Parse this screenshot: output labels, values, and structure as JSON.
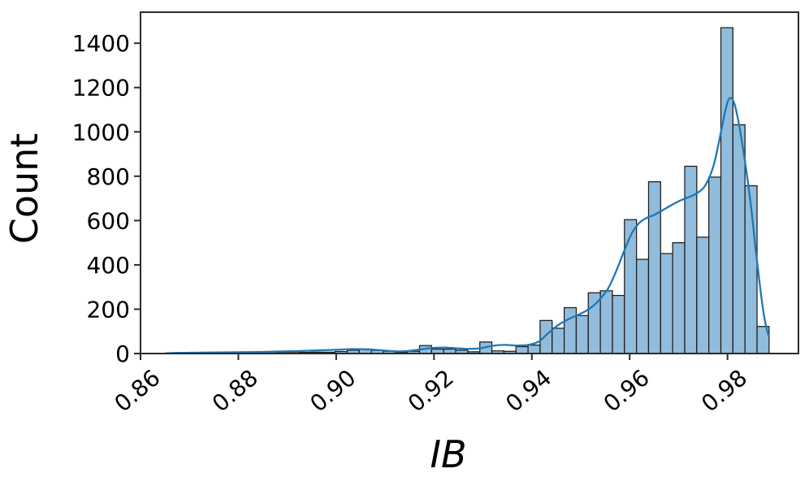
{
  "chart_data": {
    "type": "histogram",
    "title": "",
    "xlabel": "IB",
    "ylabel": "Count",
    "legend": "none",
    "grid": false,
    "xlim": [
      0.86,
      0.9945
    ],
    "ylim": [
      0,
      1540
    ],
    "x_ticks": [
      0.86,
      0.88,
      0.9,
      0.92,
      0.94,
      0.96,
      0.98
    ],
    "x_tick_labels": [
      "0.86",
      "0.88",
      "0.90",
      "0.92",
      "0.94",
      "0.96",
      "0.98"
    ],
    "y_ticks": [
      0,
      200,
      400,
      600,
      800,
      1000,
      1200,
      1400
    ],
    "y_tick_labels": [
      "0",
      "200",
      "400",
      "600",
      "800",
      "1000",
      "1200",
      "1400"
    ],
    "bin_start": 0.8653,
    "bin_width": 0.002464,
    "counts": [
      3,
      3,
      2,
      2,
      2,
      2,
      3,
      3,
      2,
      3,
      4,
      5,
      6,
      6,
      9,
      15,
      20,
      14,
      10,
      5,
      10,
      36,
      20,
      20,
      15,
      8,
      52,
      12,
      10,
      31,
      38,
      149,
      114,
      207,
      171,
      274,
      283,
      262,
      604,
      425,
      775,
      451,
      500,
      845,
      525,
      796,
      1470,
      1032,
      757,
      122
    ],
    "kde_points": [
      [
        0.8655,
        1
      ],
      [
        0.868,
        3
      ],
      [
        0.872,
        4
      ],
      [
        0.876,
        5
      ],
      [
        0.88,
        6
      ],
      [
        0.884,
        7
      ],
      [
        0.888,
        9
      ],
      [
        0.892,
        11
      ],
      [
        0.896,
        14
      ],
      [
        0.9,
        17
      ],
      [
        0.9035,
        20
      ],
      [
        0.906,
        19
      ],
      [
        0.909,
        15
      ],
      [
        0.912,
        10
      ],
      [
        0.9145,
        11
      ],
      [
        0.917,
        18
      ],
      [
        0.9195,
        25
      ],
      [
        0.922,
        27
      ],
      [
        0.9245,
        24
      ],
      [
        0.927,
        21
      ],
      [
        0.9295,
        24
      ],
      [
        0.932,
        35
      ],
      [
        0.9345,
        39
      ],
      [
        0.937,
        36
      ],
      [
        0.9395,
        40
      ],
      [
        0.9415,
        55
      ],
      [
        0.9435,
        95
      ],
      [
        0.9455,
        130
      ],
      [
        0.9475,
        155
      ],
      [
        0.9495,
        175
      ],
      [
        0.9515,
        198
      ],
      [
        0.9535,
        235
      ],
      [
        0.9555,
        290
      ],
      [
        0.9572,
        370
      ],
      [
        0.959,
        470
      ],
      [
        0.9605,
        545
      ],
      [
        0.962,
        590
      ],
      [
        0.9635,
        612
      ],
      [
        0.965,
        625
      ],
      [
        0.967,
        650
      ],
      [
        0.969,
        675
      ],
      [
        0.9705,
        692
      ],
      [
        0.972,
        705
      ],
      [
        0.9735,
        720
      ],
      [
        0.975,
        745
      ],
      [
        0.9762,
        790
      ],
      [
        0.9773,
        860
      ],
      [
        0.9783,
        960
      ],
      [
        0.9793,
        1070
      ],
      [
        0.9801,
        1140
      ],
      [
        0.9808,
        1152
      ],
      [
        0.9815,
        1120
      ],
      [
        0.9823,
        1040
      ],
      [
        0.9831,
        935
      ],
      [
        0.984,
        800
      ],
      [
        0.9849,
        645
      ],
      [
        0.9857,
        480
      ],
      [
        0.9865,
        330
      ],
      [
        0.9872,
        210
      ],
      [
        0.9879,
        120
      ],
      [
        0.9885,
        75
      ]
    ],
    "colors": {
      "bar_fill": "#92bcdc",
      "bar_edge": "#1c1c1c",
      "kde_line": "#1f77b4",
      "axis": "#2b2b2b",
      "text": "#000000",
      "background": "#ffffff"
    }
  }
}
